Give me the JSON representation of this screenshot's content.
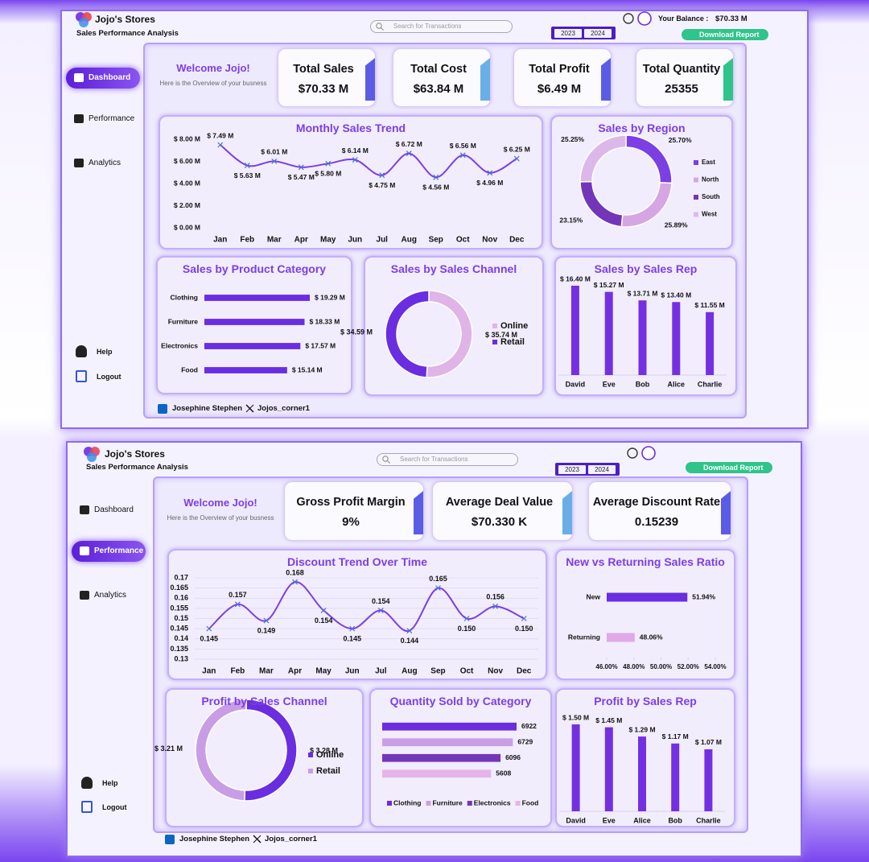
{
  "panels": [
    {
      "brand": "Jojo's Stores",
      "subtitle": "Sales Performance Analysis",
      "search": "Search for Transactions",
      "years": [
        "2023",
        "2024"
      ],
      "balance_label": "Your Balance :",
      "balance": "$70.33 M",
      "download": "Download Report",
      "nav": [
        "Dashboard",
        "Performance",
        "Analytics"
      ],
      "active_nav": 0,
      "nav_bottom": [
        "Help",
        "Logout"
      ],
      "welcome": "Welcome Jojo!",
      "welcome_sub": "Here is the Overview of your busness",
      "kpis": [
        {
          "label": "Total Sales",
          "value": "$70.33 M"
        },
        {
          "label": "Total Cost",
          "value": "$63.84 M"
        },
        {
          "label": "Total Profit",
          "value": "$6.49 M"
        },
        {
          "label": "Total Quantity",
          "value": "25355"
        }
      ],
      "footer": [
        "Josephine Stephen",
        "Jojos_corner1"
      ]
    },
    {
      "brand": "Jojo's Stores",
      "subtitle": "Sales Performance Analysis",
      "search": "Search for Transactions",
      "years": [
        "2023",
        "2024"
      ],
      "download": "Download Report",
      "nav": [
        "Dashboard",
        "Performance",
        "Analytics"
      ],
      "active_nav": 1,
      "nav_bottom": [
        "Help",
        "Logout"
      ],
      "welcome": "Welcome Jojo!",
      "welcome_sub": "Here is the Overview of your busness",
      "kpis": [
        {
          "label": "Gross Profit Margin",
          "value": "9%"
        },
        {
          "label": "Average Deal Value",
          "value": "$70.330 K"
        },
        {
          "label": "Average Discount Rate",
          "value": "0.15239"
        }
      ],
      "footer": [
        "Josephine Stephen",
        "Jojos_corner1"
      ]
    }
  ],
  "chart_data": [
    {
      "type": "line",
      "title": "Monthly Sales Trend",
      "categories": [
        "Jan",
        "Feb",
        "Mar",
        "Apr",
        "May",
        "Jun",
        "Jul",
        "Aug",
        "Sep",
        "Oct",
        "Nov",
        "Dec"
      ],
      "values": [
        7.49,
        5.63,
        6.01,
        5.47,
        5.8,
        6.14,
        4.75,
        6.72,
        4.56,
        6.56,
        4.96,
        6.25
      ],
      "value_labels": [
        "$ 7.49 M",
        "$ 5.63 M",
        "$ 6.01 M",
        "$ 5.47 M",
        "$ 5.80 M",
        "$ 6.14 M",
        "$ 4.75 M",
        "$ 6.72 M",
        "$ 4.56 M",
        "$ 6.56 M",
        "$ 4.96 M",
        "$ 6.25 M"
      ],
      "ylim": [
        0,
        8
      ],
      "yticks": [
        {
          "value": 0,
          "label": "$ 0.00 M"
        },
        {
          "value": 2,
          "label": "$ 2.00 M"
        },
        {
          "value": 4,
          "label": "$ 4.00 M"
        },
        {
          "value": 6,
          "label": "$ 6.00 M"
        },
        {
          "value": 8,
          "label": "$ 8.00 M"
        }
      ],
      "color": "#7b3fe4",
      "grid": false
    },
    {
      "type": "donut",
      "title": "Sales by Region",
      "categories": [
        "East",
        "North",
        "South",
        "West"
      ],
      "values": [
        25.7,
        25.89,
        23.15,
        25.25
      ],
      "value_labels": [
        "25.70%",
        "25.89%",
        "23.15%",
        "25.25%"
      ],
      "colors": [
        "#7b3fe4",
        "#d6a6e4",
        "#7436b8",
        "#dcb8ea"
      ],
      "legend": "right"
    },
    {
      "type": "barh",
      "title": "Sales by Product Category",
      "categories": [
        "Clothing",
        "Furniture",
        "Electronics",
        "Food"
      ],
      "values": [
        19.29,
        18.33,
        17.57,
        15.14
      ],
      "value_labels": [
        "$ 19.29 M",
        "$ 18.33 M",
        "$ 17.57 M",
        "$ 15.14 M"
      ],
      "color": "#6a2de0"
    },
    {
      "type": "donut",
      "title": "Sales by Sales Channel",
      "categories": [
        "Online",
        "Retail"
      ],
      "values": [
        35.74,
        34.59
      ],
      "value_labels": [
        "$ 35.74 M",
        "$ 34.59 M"
      ],
      "colors": [
        "#e0b4e6",
        "#6a2de0"
      ],
      "legend": "right"
    },
    {
      "type": "bar",
      "title": "Sales by Sales Rep",
      "categories": [
        "David",
        "Eve",
        "Bob",
        "Alice",
        "Charlie"
      ],
      "values": [
        16.4,
        15.27,
        13.71,
        13.4,
        11.55
      ],
      "value_labels": [
        "$ 16.40 M",
        "$ 15.27 M",
        "$ 13.71 M",
        "$ 13.40 M",
        "$ 11.55 M"
      ],
      "color": "#7430e0"
    },
    {
      "type": "line",
      "title": "Discount Trend Over Time",
      "categories": [
        "Jan",
        "Feb",
        "Mar",
        "Apr",
        "May",
        "Jun",
        "Jul",
        "Aug",
        "Sep",
        "Oct",
        "Nov",
        "Dec"
      ],
      "values": [
        0.145,
        0.157,
        0.149,
        0.168,
        0.154,
        0.145,
        0.154,
        0.144,
        0.165,
        0.15,
        0.156,
        0.15
      ],
      "value_labels": [
        "0.145",
        "0.157",
        "0.149",
        "0.168",
        "0.154",
        "0.145",
        "0.154",
        "0.144",
        "0.165",
        "0.150",
        "0.156",
        "0.150"
      ],
      "ylim": [
        0.13,
        0.17
      ],
      "yticks": [
        0.13,
        0.135,
        0.14,
        0.145,
        0.15,
        0.155,
        0.16,
        0.165,
        0.17
      ],
      "color": "#7b3fe4",
      "grid": true
    },
    {
      "type": "barh",
      "title": "New vs Returning Sales Ratio",
      "categories": [
        "New",
        "Returning"
      ],
      "values": [
        51.94,
        48.06
      ],
      "value_labels": [
        "51.94%",
        "48.06%"
      ],
      "colors": [
        "#6a2de0",
        "#e0a8e6"
      ],
      "xlim": [
        46,
        54
      ],
      "xticks": [
        {
          "value": 46,
          "label": "46.00%"
        },
        {
          "value": 48,
          "label": "48.00%"
        },
        {
          "value": 50,
          "label": "50.00%"
        },
        {
          "value": 52,
          "label": "52.00%"
        },
        {
          "value": 54,
          "label": "54.00%"
        }
      ]
    },
    {
      "type": "donut",
      "title": "Profit by Sales Channel",
      "categories": [
        "Online",
        "Retail"
      ],
      "values": [
        3.28,
        3.21
      ],
      "value_labels": [
        "$ 3.28 M",
        "$ 3.21 M"
      ],
      "colors": [
        "#6a2de0",
        "#c99de6"
      ],
      "legend": "right"
    },
    {
      "type": "barh",
      "title": "Quantity Sold by Category",
      "categories": [
        "Clothing",
        "Furniture",
        "Electronics",
        "Food"
      ],
      "values": [
        6922,
        6729,
        6096,
        5608
      ],
      "colors": [
        "#6a2de0",
        "#c9a0e6",
        "#7436b8",
        "#e6b3ea"
      ],
      "legend": "bottom"
    },
    {
      "type": "bar",
      "title": "Profit by Sales Rep",
      "categories": [
        "David",
        "Eve",
        "Alice",
        "Bob",
        "Charlie"
      ],
      "values": [
        1.5,
        1.45,
        1.29,
        1.17,
        1.07
      ],
      "value_labels": [
        "$ 1.50 M",
        "$ 1.45 M",
        "$ 1.29 M",
        "$ 1.17 M",
        "$ 1.07 M"
      ],
      "color": "#7430e0"
    }
  ]
}
